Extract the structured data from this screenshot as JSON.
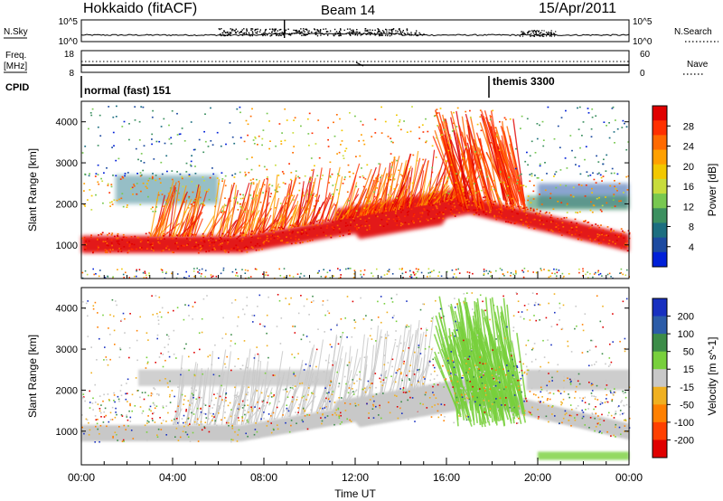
{
  "header": {
    "station": "Hokkaido (fitACF)",
    "beam": "Beam 14",
    "date": "15/Apr/2011"
  },
  "panels": {
    "nsky_label": "N.Sky",
    "nsky_ticks": [
      "10^5",
      "10^0"
    ],
    "nsearch_label": "N.Search",
    "nsearch_ticks": [
      "10^5",
      "10^0"
    ],
    "freq_label_1": "Freq.",
    "freq_label_2": "[MHz]",
    "freq_ticks": [
      "18",
      "8"
    ],
    "nave_label": "Nave",
    "nave_ticks": [
      "60",
      "0"
    ],
    "cpid_label": "CPID",
    "cpid_modes": [
      "normal (fast) 151",
      "themis 3300"
    ]
  },
  "chart_data": [
    {
      "type": "heatmap",
      "title": "",
      "xlabel": "",
      "ylabel": "Slant Range [km]",
      "x_range": [
        "00:00",
        "24:00"
      ],
      "ylim": [
        180,
        4500
      ],
      "y_ticks": [
        1000,
        2000,
        3000,
        4000
      ],
      "colorbar": {
        "label": "Power [dB]",
        "ticks": [
          "28",
          "24",
          "20",
          "16",
          "12",
          "8",
          "4"
        ],
        "colors": [
          "#e00000",
          "#ff3000",
          "#ff6a00",
          "#ffa000",
          "#f2c800",
          "#c8dc3c",
          "#78c850",
          "#3c9060",
          "#1c6e80",
          "#1c4aa0",
          "#0020d8"
        ]
      }
    },
    {
      "type": "heatmap",
      "title": "",
      "xlabel": "Time UT",
      "ylabel": "Slant Range [km]",
      "x_range": [
        "00:00",
        "24:00"
      ],
      "ylim": [
        180,
        4500
      ],
      "y_ticks": [
        1000,
        2000,
        3000,
        4000
      ],
      "x_ticks": [
        "00:00",
        "04:00",
        "08:00",
        "12:00",
        "16:00",
        "20:00",
        "00:00"
      ],
      "colorbar": {
        "label": "Velocity [m s^-1]",
        "ticks": [
          "200",
          "100",
          "50",
          "15",
          "-15",
          "-50",
          "-100",
          "-200"
        ],
        "colors": [
          "#1830c0",
          "#2c5ca8",
          "#3c8c48",
          "#78d03c",
          "#c8c8c8",
          "#f0b020",
          "#ff8000",
          "#ff4000",
          "#e00000"
        ]
      }
    }
  ]
}
